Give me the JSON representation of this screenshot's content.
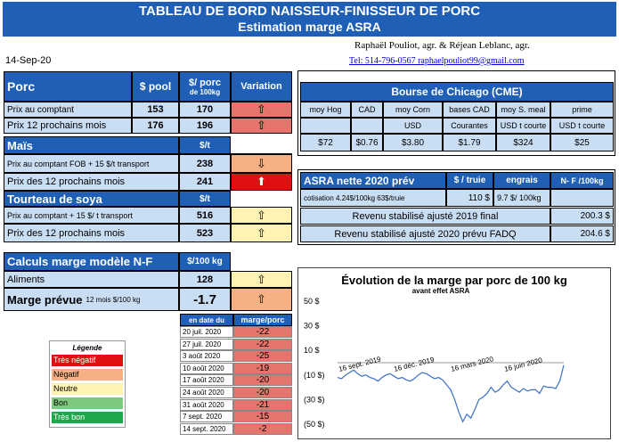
{
  "header": {
    "title": "TABLEAU DE BORD NAISSEUR-FINISSEUR DE PORC",
    "subtitle": "Estimation marge ASRA"
  },
  "date": "14-Sep-20",
  "authors": "Raphaël Pouliot, agr.    &    Réjean Leblanc, agr.",
  "contact": "Tel:     514-796-0567    raphaelpouliot99@gmail.com",
  "porc": {
    "title": "Porc",
    "col_pool": "$ pool",
    "col_per": "$/ porc",
    "col_per2": "de 100kg",
    "col_var": "Variation",
    "rows": [
      {
        "label": "Prix au comptant",
        "pool": "153",
        "per": "170",
        "arrow": "⇧"
      },
      {
        "label": "Prix 12 prochains mois",
        "pool": "176",
        "per": "196",
        "arrow": "⇧"
      }
    ]
  },
  "mais": {
    "title": "Maïs",
    "col": "$/t",
    "rows": [
      {
        "label": "Prix au comptant  FOB + 15 $/t transport",
        "value": "238",
        "arrow": "⇩"
      },
      {
        "label": "Prix des 12 prochains mois",
        "value": "241",
        "arrow": "⬆"
      }
    ]
  },
  "soya": {
    "title": "Tourteau de soya",
    "col": "$/t",
    "rows": [
      {
        "label": "Prix au comptant  + 15 $/ t  transport",
        "value": "516",
        "arrow": "⇧"
      },
      {
        "label": "Prix des 12 prochains mois",
        "value": "523",
        "arrow": "⇧"
      }
    ]
  },
  "calculs": {
    "title": "Calculs marge  modèle N-F",
    "col": "$/100 kg",
    "aliments_label": "Aliments",
    "aliments_value": "128",
    "aliments_arrow": "⇧",
    "marge_label": "Marge prévue",
    "marge_sub": "12 mois  $/100 kg",
    "marge_value": "-1.7",
    "marge_arrow": "⇧"
  },
  "history": {
    "col_date": "en date du",
    "col_marge": "marge/porc",
    "rows": [
      {
        "date": "20 juil. 2020",
        "value": "-22"
      },
      {
        "date": "27 juil. 2020",
        "value": "-22"
      },
      {
        "date": "3 août 2020",
        "value": "-25"
      },
      {
        "date": "10 août 2020",
        "value": "-19"
      },
      {
        "date": "17 août 2020",
        "value": "-20"
      },
      {
        "date": "24 août 2020",
        "value": "-20"
      },
      {
        "date": "31 août 2020",
        "value": "-21"
      },
      {
        "date": "7 sept. 2020",
        "value": "-15"
      },
      {
        "date": "14 sept. 2020",
        "value": "-2"
      }
    ]
  },
  "legend": {
    "title": "Légende",
    "items": [
      {
        "label": "Très négatif",
        "color": "#e01010"
      },
      {
        "label": "Négatif",
        "color": "#f5b183"
      },
      {
        "label": "Neutre",
        "color": "#fff3b3"
      },
      {
        "label": "Bon",
        "color": "#7fc97f"
      },
      {
        "label": "Très bon",
        "color": "#1da84a"
      }
    ]
  },
  "cme": {
    "title": "Bourse de Chicago (CME)",
    "headers": [
      "moy Hog",
      "CAD",
      "moy Corn",
      "bases CAD",
      "moy S. meal",
      "prime"
    ],
    "units": [
      "",
      "",
      "USD",
      "Courantes",
      "USD t courte",
      "USD t courte"
    ],
    "values": [
      "$72",
      "$0.76",
      "$3.80",
      "$1.79",
      "$324",
      "$25"
    ]
  },
  "asra": {
    "title": "ASRA nette 2020 prév",
    "col1": "$ / truie",
    "col2": "engrais",
    "col3": "N- F /100kg",
    "cotisation_label": "cotisation 4.24$/100kg  63$/truie",
    "cotisation_value": "110  $",
    "engrais_value": "9.7  $/ 100kg",
    "row2_label": "Revenu stabilisé ajusté 2019 final",
    "row2_value": "200.3 $",
    "row3_label": "Revenu stabilisé ajusté 2020 prévu FADQ",
    "row3_value": "204.6 $"
  },
  "chart_data": {
    "type": "line",
    "title": "Évolution de la marge par porc de 100 kg",
    "subtitle": "avant effet ASRA",
    "yticks": [
      "50 $",
      "30 $",
      "10 $",
      "(10 $)",
      "(30 $)",
      "(50 $)"
    ],
    "ylim": [
      -50,
      50
    ],
    "xticks": [
      "16 sept. 2019",
      "16 déc. 2019",
      "16 mars 2020",
      "16 juin 2020"
    ],
    "values": [
      -12,
      -13,
      -10,
      -8,
      -6,
      -9,
      -11,
      -10,
      -12,
      -13,
      -15,
      -12,
      -10,
      -9,
      -11,
      -13,
      -12,
      -14,
      -15,
      -13,
      -10,
      -8,
      -9,
      -11,
      -13,
      -12,
      -14,
      -18,
      -22,
      -30,
      -40,
      -48,
      -42,
      -45,
      -38,
      -30,
      -28,
      -25,
      -20,
      -24,
      -22,
      -18,
      -15,
      -20,
      -22,
      -24,
      -21,
      -23,
      -22,
      -22,
      -25,
      -19,
      -20,
      -20,
      -21,
      -15,
      -2
    ]
  }
}
